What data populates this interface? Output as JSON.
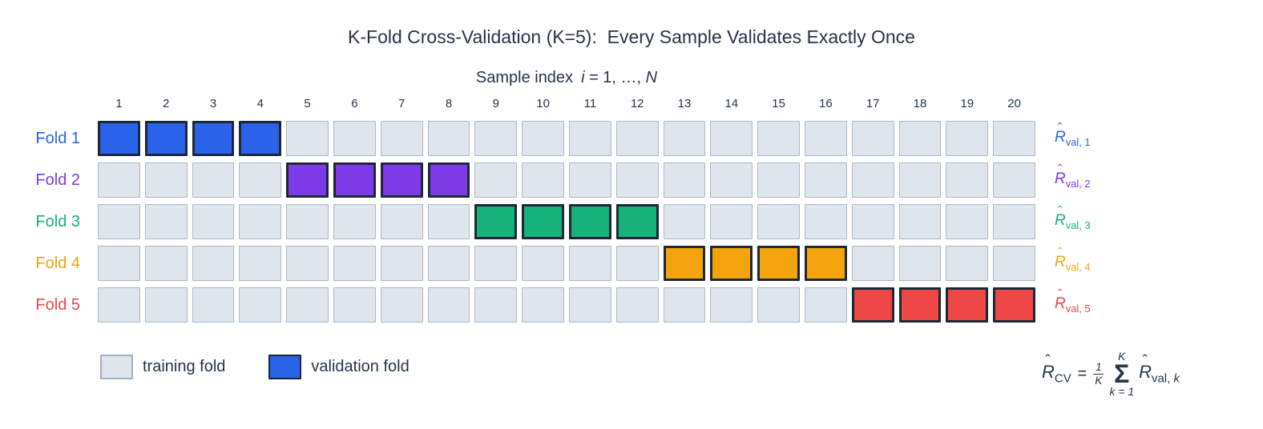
{
  "title": "K-Fold Cross-Validation (K=5):  Every Sample Validates Exactly Once",
  "subtitle": {
    "text": "Sample index",
    "var_i": "i",
    "equals": " = 1, …, ",
    "var_n": "N"
  },
  "columns": [
    "1",
    "2",
    "3",
    "4",
    "5",
    "6",
    "7",
    "8",
    "9",
    "10",
    "11",
    "12",
    "13",
    "14",
    "15",
    "16",
    "17",
    "18",
    "19",
    "20"
  ],
  "glyphs": {
    "hat": "ˆ",
    "R": "R",
    "sigma": "Σ"
  },
  "colors": {
    "text_navy": "#263449",
    "training_fill": "#dfe5ed",
    "training_border": "#aab8c9",
    "validation_border": "#1d2836"
  },
  "folds": [
    {
      "label": "Fold 1",
      "color": "#2a63e9",
      "validation_columns": [
        1,
        2,
        3,
        4
      ],
      "metric_subscript": "val, 1"
    },
    {
      "label": "Fold 2",
      "color": "#7d3be8",
      "validation_columns": [
        5,
        6,
        7,
        8
      ],
      "metric_subscript": "val, 2"
    },
    {
      "label": "Fold 3",
      "color": "#16b17b",
      "validation_columns": [
        9,
        10,
        11,
        12
      ],
      "metric_subscript": "val, 3"
    },
    {
      "label": "Fold 4",
      "color": "#f3a30c",
      "validation_columns": [
        13,
        14,
        15,
        16
      ],
      "metric_subscript": "val, 4"
    },
    {
      "label": "Fold 5",
      "color": "#ee4746",
      "validation_columns": [
        17,
        18,
        19,
        20
      ],
      "metric_subscript": "val, 5"
    }
  ],
  "legend": {
    "training_label": "training fold",
    "validation_label": "validation fold",
    "validation_color": "#2a63e9"
  },
  "formula": {
    "lhs_subscript": "CV",
    "equals": "=",
    "frac_num": "1",
    "frac_den": "K",
    "sum_upper": "K",
    "sum_lower": "k = 1",
    "rhs_sub_text": "val, ",
    "rhs_sub_var": "k"
  }
}
